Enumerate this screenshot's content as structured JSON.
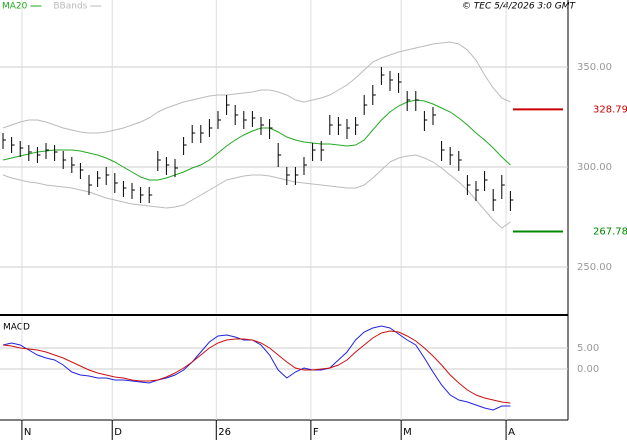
{
  "chart_data": [
    {
      "type": "ohlc",
      "annotation": "© TEC 5/4/2026 3:0 GMT",
      "xlim": [
        -0.35,
        65.7
      ],
      "ylim": [
        227,
        383.5
      ],
      "yticks": [
        {
          "value": 250,
          "label": "250.00"
        },
        {
          "value": 300,
          "label": "300.00"
        },
        {
          "value": 350,
          "label": "350.00"
        }
      ],
      "grid": true,
      "ohlc": {
        "color": "#000000",
        "high": [
          317,
          315,
          313,
          311,
          310,
          312,
          311,
          308,
          305,
          302,
          296,
          298,
          300,
          297,
          293,
          292,
          290,
          290,
          308,
          305,
          304,
          315,
          321,
          321,
          324,
          328,
          336,
          331,
          328,
          328,
          325,
          324,
          312,
          300,
          300,
          305,
          312,
          313,
          326,
          325,
          324,
          325,
          336,
          341,
          350,
          348,
          347,
          338,
          338,
          328,
          330,
          313,
          310,
          308,
          296,
          293,
          298,
          289,
          296,
          288
        ],
        "low": [
          309,
          307,
          305,
          303,
          302,
          304,
          303,
          299,
          297,
          294,
          286,
          290,
          291,
          287,
          285,
          284,
          282,
          282,
          298,
          296,
          295,
          306,
          312,
          312,
          315,
          319,
          326,
          321,
          319,
          320,
          316,
          314,
          300,
          291,
          291,
          296,
          303,
          303,
          316,
          316,
          314,
          316,
          326,
          331,
          341,
          338,
          337,
          328,
          328,
          318,
          321,
          303,
          301,
          298,
          286,
          283,
          288,
          278,
          284,
          278
        ],
        "close": [
          313.5,
          311,
          309.5,
          307.5,
          306,
          308.5,
          307.5,
          303.5,
          301,
          298.5,
          291,
          294.5,
          296,
          292,
          289.5,
          288.5,
          286,
          286,
          303.5,
          301,
          299.5,
          311,
          317,
          317,
          319.5,
          323.5,
          331,
          326,
          323.5,
          324.5,
          321,
          319.5,
          306,
          296,
          296,
          301,
          308.5,
          308.5,
          321,
          321,
          319.5,
          321,
          331,
          336,
          346,
          343.5,
          342.5,
          333.5,
          333.5,
          323.5,
          326,
          308.5,
          306,
          303.5,
          291,
          288.5,
          293.5,
          283.5,
          291,
          283.5
        ]
      },
      "series": [
        {
          "name": "MA20",
          "color": "#22aa22",
          "values": [
            303.5,
            304.5,
            305.5,
            306.5,
            307.5,
            308,
            308.5,
            308.5,
            308.5,
            308,
            307,
            306,
            304.5,
            302.5,
            300,
            297.5,
            295,
            293.5,
            293.5,
            294.5,
            296,
            297.5,
            299.5,
            301,
            303.5,
            307,
            310.5,
            313.5,
            316,
            318,
            319.5,
            319.5,
            317.5,
            315,
            313.5,
            312.5,
            312,
            311.5,
            311.5,
            311,
            310.5,
            311,
            313.5,
            318.5,
            323.5,
            327.5,
            330.5,
            332.5,
            333.5,
            333,
            331.5,
            329.5,
            327.5,
            324.5,
            321,
            317,
            313.5,
            309.5,
            305,
            301
          ]
        },
        {
          "name": "BBands",
          "color": "#bbbbbb",
          "upper": [
            319.5,
            321,
            322.5,
            323.5,
            323.5,
            322.5,
            321,
            319.5,
            318.5,
            317.5,
            317,
            317,
            317.5,
            318.5,
            319.5,
            321,
            322.5,
            324.5,
            327.5,
            329.5,
            331,
            332.5,
            333.5,
            334.5,
            335.5,
            336,
            336,
            336.5,
            337,
            337.5,
            338.5,
            338.5,
            337.5,
            336,
            333.5,
            332.5,
            333.5,
            334.5,
            336,
            338.5,
            341,
            344.5,
            348.5,
            352.5,
            354.5,
            356,
            357.5,
            358.5,
            359.5,
            360.5,
            361.5,
            362,
            362.5,
            361.5,
            358.5,
            353.5,
            346,
            339.5,
            334.5,
            332.5
          ],
          "lower": [
            296,
            294.5,
            293.5,
            292.5,
            292,
            291,
            290.5,
            290,
            289.5,
            288.5,
            287.5,
            286,
            284.5,
            283.5,
            282.5,
            281.5,
            281,
            280.5,
            280,
            279.5,
            280,
            281,
            283.5,
            286,
            288.5,
            291,
            293.5,
            294.5,
            295.5,
            296,
            296,
            295.5,
            294.5,
            293.5,
            292.5,
            292,
            291.5,
            291,
            290.5,
            290,
            289.5,
            289.5,
            291,
            294.5,
            298.5,
            302.5,
            304.5,
            305.5,
            306,
            304.5,
            302.5,
            299.5,
            296,
            292.5,
            288.5,
            283.5,
            278.5,
            273.5,
            269.5,
            272.5
          ]
        }
      ],
      "levels": [
        {
          "value": 328.79,
          "color": "#cc0000"
        },
        {
          "value": 267.78,
          "color": "#008800"
        }
      ]
    },
    {
      "type": "line",
      "title": "MACD",
      "xlim": [
        -0.35,
        65.7
      ],
      "ylim": [
        -12.14,
        12.38
      ],
      "yticks": [
        {
          "value": 0,
          "label": "0.00"
        },
        {
          "value": 5,
          "label": "5.00"
        }
      ],
      "xticks": [
        {
          "value": 2.2,
          "label": "N"
        },
        {
          "value": 12.7,
          "label": "D"
        },
        {
          "value": 24.8,
          "label": "26"
        },
        {
          "value": 35.8,
          "label": "F"
        },
        {
          "value": 46.3,
          "label": "M"
        },
        {
          "value": 58.5,
          "label": "A"
        }
      ],
      "grid": true,
      "series": [
        {
          "color": "#2222dd",
          "values": [
            5.71,
            6.19,
            5.71,
            4.52,
            3.33,
            2.62,
            2.14,
            0.95,
            -0.71,
            -1.43,
            -1.67,
            -2.14,
            -2.14,
            -2.62,
            -2.62,
            -2.86,
            -3.1,
            -3.33,
            -2.62,
            -2.14,
            -1.43,
            -0.24,
            1.67,
            4.05,
            6.43,
            7.86,
            8.1,
            7.62,
            6.9,
            6.9,
            5.71,
            3.33,
            -0.24,
            -2.14,
            -0.71,
            0.24,
            -0.24,
            -0.24,
            0.24,
            2.14,
            4.05,
            6.9,
            8.81,
            9.76,
            10.24,
            9.76,
            8.33,
            6.9,
            5.71,
            2.62,
            -0.71,
            -3.81,
            -6.19,
            -7.38,
            -7.86,
            -8.57,
            -9.29,
            -9.76,
            -8.81,
            -8.81
          ]
        },
        {
          "color": "#cc1111",
          "values": [
            5.71,
            5.48,
            5.0,
            4.76,
            4.52,
            4.05,
            3.33,
            2.62,
            1.67,
            0.71,
            -0.24,
            -0.95,
            -1.43,
            -1.9,
            -2.14,
            -2.62,
            -2.86,
            -2.86,
            -2.62,
            -1.9,
            -0.95,
            0.24,
            1.67,
            3.33,
            5.0,
            6.19,
            6.9,
            7.14,
            7.14,
            6.9,
            6.19,
            5.0,
            3.33,
            1.67,
            0.24,
            -0.24,
            -0.24,
            0.0,
            0.24,
            0.95,
            2.14,
            4.05,
            5.71,
            7.38,
            8.57,
            9.05,
            8.81,
            7.86,
            6.67,
            5.0,
            3.1,
            0.95,
            -1.43,
            -3.33,
            -5.0,
            -6.19,
            -6.9,
            -7.38,
            -7.86,
            -8.1
          ]
        }
      ]
    }
  ]
}
